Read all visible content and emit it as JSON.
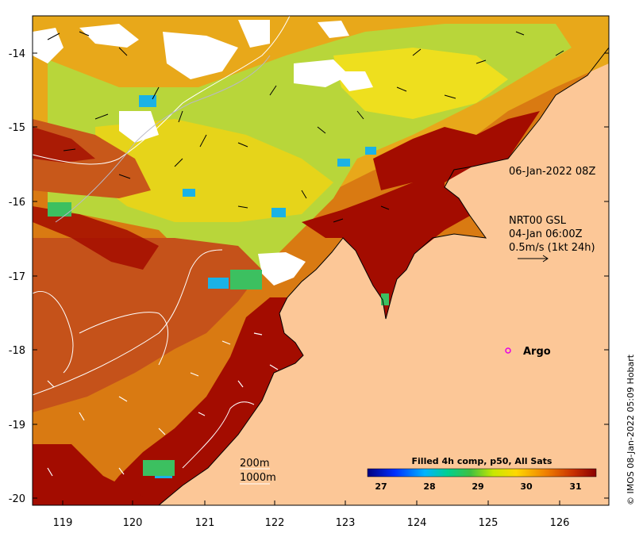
{
  "map": {
    "date_label": "06-Jan-2022 08Z",
    "currents": {
      "source": "NRT00 GSL",
      "date": "04-Jan 06:00Z",
      "scale": "0.5m/s (1kt 24h)"
    },
    "argo_label": "Argo",
    "depth_contours": [
      "200m",
      "1000m"
    ],
    "credit": "© IMOS 08-Jan-2022 05:09 Hobart",
    "x_ticks": [
      "119",
      "120",
      "121",
      "122",
      "123",
      "124",
      "125",
      "126"
    ],
    "y_ticks": [
      "-14",
      "-15",
      "-16",
      "-17",
      "-18",
      "-19",
      "-20"
    ],
    "colorbar": {
      "title": "Filled 4h comp, p50, All Sats",
      "ticks": [
        "27",
        "28",
        "29",
        "30",
        "31"
      ]
    },
    "colors": {
      "land": "#fcc797",
      "warm": "#a30c00",
      "orange": "#d66a10",
      "yellow": "#f6d200",
      "green": "#7ed23a",
      "cyan": "#1ab2e6",
      "argo": "#e600e6"
    }
  }
}
